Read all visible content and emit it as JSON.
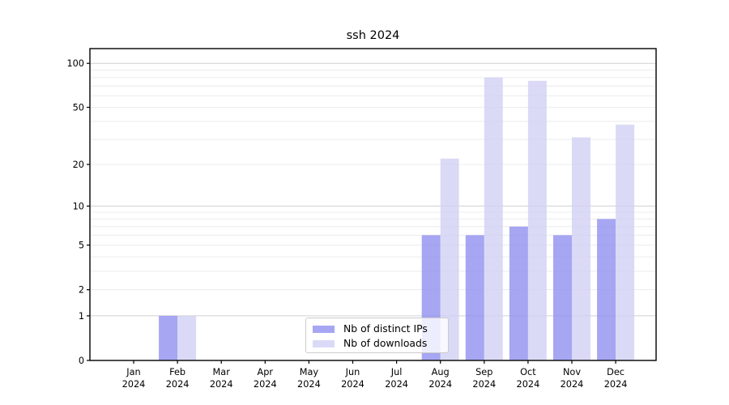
{
  "title": "ssh 2024",
  "legend": {
    "items": [
      {
        "label": "Nb of distinct IPs"
      },
      {
        "label": "Nb of downloads"
      }
    ]
  },
  "colors": {
    "ips_bar": "#8d8df0",
    "downloads_bar": "#cfcff5",
    "bar_opacity": 0.78,
    "grid_minor": "#ececec",
    "grid_major": "#d0d0d0",
    "spine": "#000000",
    "tick_label": "#000000",
    "legend_border": "#cccccc",
    "background": "#ffffff"
  },
  "chart_data": {
    "type": "bar",
    "title": "ssh 2024",
    "categories": [
      "Jan",
      "Feb",
      "Mar",
      "Apr",
      "May",
      "Jun",
      "Jul",
      "Aug",
      "Sep",
      "Oct",
      "Nov",
      "Dec"
    ],
    "category_year": "2024",
    "series": [
      {
        "name": "Nb of distinct IPs",
        "values": [
          0,
          1,
          0,
          0,
          0,
          0,
          0,
          6,
          6,
          7,
          6,
          8
        ]
      },
      {
        "name": "Nb of downloads",
        "values": [
          0,
          1,
          0,
          0,
          0,
          0,
          0,
          22,
          80,
          76,
          31,
          38
        ]
      }
    ],
    "yscale": "log1p",
    "ylim": [
      0,
      126
    ],
    "yticks": [
      0,
      1,
      2,
      5,
      10,
      20,
      50,
      100
    ],
    "minor_gridlines": [
      2,
      3,
      4,
      5,
      6,
      7,
      8,
      9,
      20,
      30,
      40,
      50,
      60,
      70,
      80,
      90
    ],
    "major_gridlines": [
      1,
      10,
      100
    ],
    "grid": true,
    "legend_position": "lower center"
  }
}
